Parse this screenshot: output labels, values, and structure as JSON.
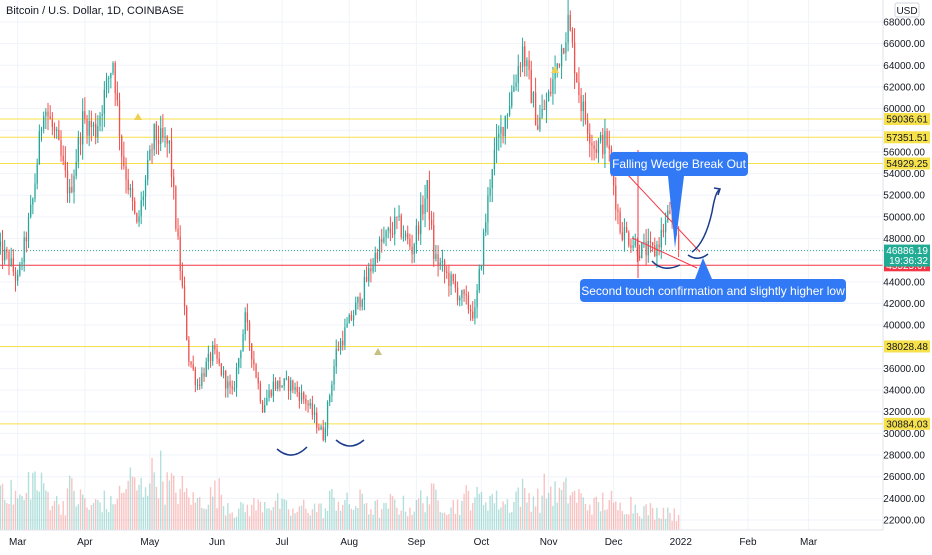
{
  "title": "Bitcoin / U.S. Dollar, 1D, COINBASE",
  "currency": "USD",
  "chart_data": {
    "type": "candlestick",
    "title": "Bitcoin / U.S. Dollar, 1D, COINBASE",
    "y_axis_ticks": [
      22000,
      24000,
      26000,
      28000,
      30000,
      32000,
      34000,
      36000,
      38000,
      40000,
      42000,
      44000,
      46000,
      48000,
      50000,
      52000,
      54000,
      56000,
      58000,
      60000,
      62000,
      64000,
      66000,
      68000
    ],
    "y_axis_tick_labels": [
      "22000.00",
      "24000.00",
      "26000.00",
      "28000.00",
      "30000.00",
      "32000.00",
      "34000.00",
      "36000.00",
      "38000.00",
      "40000.00",
      "42000.00",
      "44000.00",
      "46000.00",
      "48000.00",
      "50000.00",
      "52000.00",
      "54000.00",
      "56000.00",
      "58000.00",
      "60000.00",
      "62000.00",
      "64000.00",
      "66000.00",
      "68000.00"
    ],
    "x_axis_labels": [
      "Mar",
      "Apr",
      "May",
      "Jun",
      "Jul",
      "Aug",
      "Sep",
      "Oct",
      "Nov",
      "Dec",
      "2022",
      "Feb",
      "Mar"
    ],
    "ylim": [
      21000,
      69500
    ],
    "key_levels": [
      {
        "value": 59036.61,
        "label": "59036.61"
      },
      {
        "value": 57351.51,
        "label": "57351.51"
      },
      {
        "value": 54929.25,
        "label": "54929.25"
      },
      {
        "value": 38028.48,
        "label": "38028.48"
      },
      {
        "value": 30884.03,
        "label": "30884.03"
      }
    ],
    "support_level": {
      "value": 45525.67,
      "label": "45525.67",
      "color": "#f23645"
    },
    "current_price": {
      "value": 46886.19,
      "label": "46886.19",
      "countdown": "19:36:32",
      "color": "#22ab94"
    },
    "price_path": [
      {
        "date": "2021-02-20",
        "price": 47000
      },
      {
        "date": "2021-02-25",
        "price": 46000
      },
      {
        "date": "2021-03-01",
        "price": 44000
      },
      {
        "date": "2021-03-08",
        "price": 51500
      },
      {
        "date": "2021-03-13",
        "price": 60500
      },
      {
        "date": "2021-03-19",
        "price": 57000
      },
      {
        "date": "2021-03-25",
        "price": 52000
      },
      {
        "date": "2021-03-31",
        "price": 59000
      },
      {
        "date": "2021-04-06",
        "price": 58000
      },
      {
        "date": "2021-04-14",
        "price": 64500
      },
      {
        "date": "2021-04-18",
        "price": 56000
      },
      {
        "date": "2021-04-25",
        "price": 49000
      },
      {
        "date": "2021-05-03",
        "price": 57500
      },
      {
        "date": "2021-05-10",
        "price": 56500
      },
      {
        "date": "2021-05-13",
        "price": 49500
      },
      {
        "date": "2021-05-19",
        "price": 37000
      },
      {
        "date": "2021-05-23",
        "price": 34500
      },
      {
        "date": "2021-05-30",
        "price": 37500
      },
      {
        "date": "2021-06-08",
        "price": 33500
      },
      {
        "date": "2021-06-14",
        "price": 40500
      },
      {
        "date": "2021-06-22",
        "price": 32500
      },
      {
        "date": "2021-06-27",
        "price": 34500
      },
      {
        "date": "2021-07-05",
        "price": 34500
      },
      {
        "date": "2021-07-12",
        "price": 33000
      },
      {
        "date": "2021-07-20",
        "price": 29800
      },
      {
        "date": "2021-07-26",
        "price": 37500
      },
      {
        "date": "2021-08-06",
        "price": 42500
      },
      {
        "date": "2021-08-14",
        "price": 47000
      },
      {
        "date": "2021-08-23",
        "price": 49500
      },
      {
        "date": "2021-08-30",
        "price": 47000
      },
      {
        "date": "2021-09-06",
        "price": 52500
      },
      {
        "date": "2021-09-09",
        "price": 46500
      },
      {
        "date": "2021-09-20",
        "price": 43000
      },
      {
        "date": "2021-09-28",
        "price": 41000
      },
      {
        "date": "2021-10-06",
        "price": 55000
      },
      {
        "date": "2021-10-15",
        "price": 61500
      },
      {
        "date": "2021-10-20",
        "price": 65500
      },
      {
        "date": "2021-10-27",
        "price": 58500
      },
      {
        "date": "2021-11-01",
        "price": 61000
      },
      {
        "date": "2021-11-10",
        "price": 68000
      },
      {
        "date": "2021-11-16",
        "price": 60500
      },
      {
        "date": "2021-11-22",
        "price": 56500
      },
      {
        "date": "2021-11-28",
        "price": 57000
      },
      {
        "date": "2021-12-04",
        "price": 49000
      },
      {
        "date": "2021-12-13",
        "price": 47000
      },
      {
        "date": "2021-12-20",
        "price": 46800
      },
      {
        "date": "2021-12-27",
        "price": 50500
      },
      {
        "date": "2021-12-31",
        "price": 46886
      }
    ],
    "volume_profile": [
      2.1,
      1.6,
      1.4,
      2.3,
      1.9,
      1.5,
      1.2,
      1.8,
      1.4,
      1.0,
      1.3,
      1.1,
      1.6,
      2.2,
      1.9,
      2.4,
      2.6,
      2.0,
      1.8,
      1.6,
      1.3,
      1.5,
      1.7,
      1.2,
      0.9,
      1.0,
      1.1,
      1.3,
      1.2,
      1.0,
      0.8,
      1.1,
      1.0,
      0.9,
      1.4,
      1.2,
      1.1,
      1.3,
      1.0,
      0.9,
      1.2,
      1.1,
      1.0,
      1.4,
      1.5,
      1.3,
      1.1,
      1.2,
      1.6,
      1.4,
      1.5,
      1.3,
      1.2,
      1.7,
      1.5,
      1.4,
      1.8,
      1.6,
      1.7,
      1.5,
      1.2,
      1.1,
      1.3,
      1.0,
      1.2,
      1.1,
      0.9,
      0.8,
      0.9,
      0.7
    ],
    "grid": true
  },
  "annotations": {
    "callout_top": "Falling Wedge Break Out",
    "callout_bottom": "Second touch confirmation and slightly higher low"
  },
  "colors": {
    "up": "#26a69a",
    "down": "#ef5350",
    "level_line": "#f7e14a",
    "level_label_bg": "#f7e14a",
    "callout_bg": "#3179f5",
    "annotation_stroke": "#1a3a8a"
  }
}
